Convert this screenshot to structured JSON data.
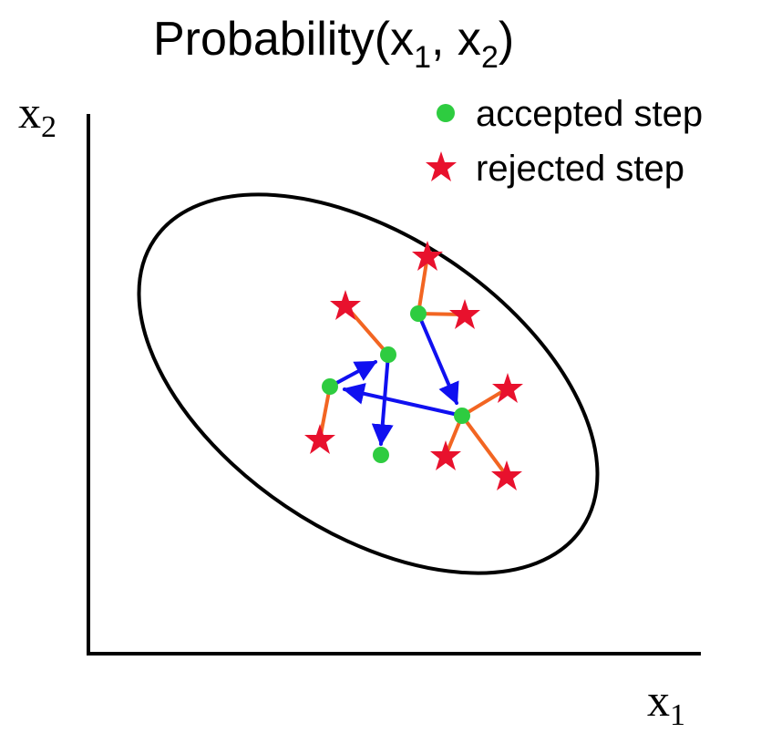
{
  "title": {
    "main": "Probability(x",
    "sub1": "1",
    "sep": ", x",
    "sub2": "2",
    "close": ")"
  },
  "axes": {
    "x_label": {
      "main": "x",
      "sub": "1"
    },
    "y_label": {
      "main": "x",
      "sub": "2"
    }
  },
  "legend": {
    "accepted_label": "accepted step",
    "rejected_label": "rejected step"
  },
  "colors": {
    "accepted": "#2ecc40",
    "rejected": "#e8112d",
    "accepted_path": "#1010f0",
    "rejected_path": "#f26522",
    "axis": "#000000",
    "contour": "#000000"
  }
}
